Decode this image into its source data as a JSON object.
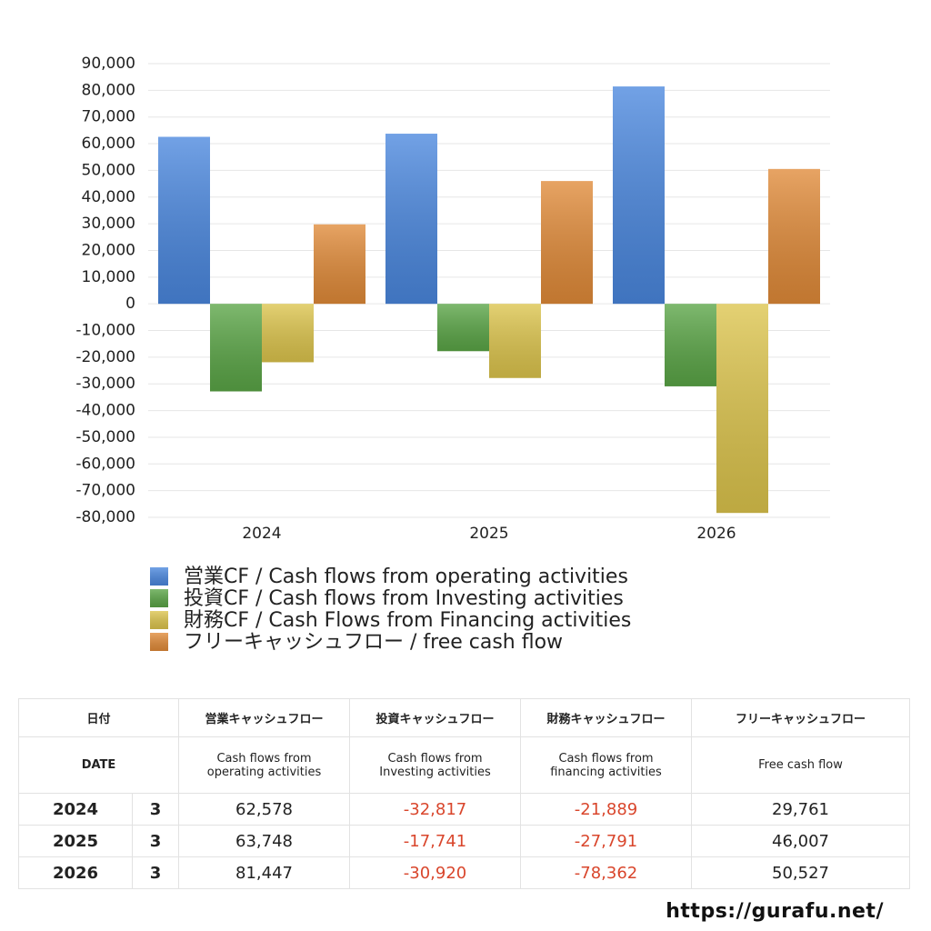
{
  "chart_data": {
    "type": "bar",
    "categories": [
      "2024",
      "2025",
      "2026"
    ],
    "series": [
      {
        "name": "営業CF / Cash flows from operating activities",
        "color": "#4a87de",
        "values": [
          62578,
          63748,
          81447
        ]
      },
      {
        "name": "投資CF / Cash flows from Investing activities",
        "color": "#5aa546",
        "values": [
          -32817,
          -17741,
          -30920
        ]
      },
      {
        "name": "財務CF / Cash Flows from Financing activities",
        "color": "#dcc44c",
        "values": [
          -21889,
          -27791,
          -78362
        ]
      },
      {
        "name": "フリーキャッシュフロー / free cash flow",
        "color": "#e08a38",
        "values": [
          29761,
          46007,
          50527
        ]
      }
    ],
    "ylim": [
      -80000,
      90000
    ],
    "yticks": [
      {
        "value": 90000,
        "label": "90,000"
      },
      {
        "value": 80000,
        "label": "80,000"
      },
      {
        "value": 70000,
        "label": "70,000"
      },
      {
        "value": 60000,
        "label": "60,000"
      },
      {
        "value": 50000,
        "label": "50,000"
      },
      {
        "value": 40000,
        "label": "40,000"
      },
      {
        "value": 30000,
        "label": "30,000"
      },
      {
        "value": 20000,
        "label": "20,000"
      },
      {
        "value": 10000,
        "label": "10,000"
      },
      0,
      {
        "value": -10000,
        "label": "-10,000"
      },
      {
        "value": -20000,
        "label": "-20,000"
      },
      {
        "value": -30000,
        "label": "-30,000"
      },
      {
        "value": -40000,
        "label": "-40,000"
      },
      {
        "value": -50000,
        "label": "-50,000"
      },
      {
        "value": -60000,
        "label": "-60,000"
      },
      {
        "value": -70000,
        "label": "-70,000"
      },
      {
        "value": -80000,
        "label": "-80,000"
      }
    ],
    "grid": true,
    "legend": "bottom"
  },
  "table": {
    "header": [
      [
        "日付",
        "営業キャッシュフロー",
        "投資キャッシュフロー",
        "財務キャッシュフロー",
        "フリーキャッシュフロー"
      ],
      [
        "DATE",
        "Cash flows from operating activities",
        "Cash flows from Investing activities",
        "Cash flows from financing activities",
        "Free cash flow"
      ]
    ],
    "rows": [
      [
        "2024",
        "3",
        "62,578",
        "-32,817",
        "-21,889",
        "29,761"
      ],
      [
        "2025",
        "3",
        "63,748",
        "-17,741",
        "-27,791",
        "46,007"
      ],
      [
        "2026",
        "3",
        "81,447",
        "-30,920",
        "-78,362",
        "50,527"
      ]
    ]
  },
  "footer": {
    "url": "https://gurafu.net/"
  }
}
